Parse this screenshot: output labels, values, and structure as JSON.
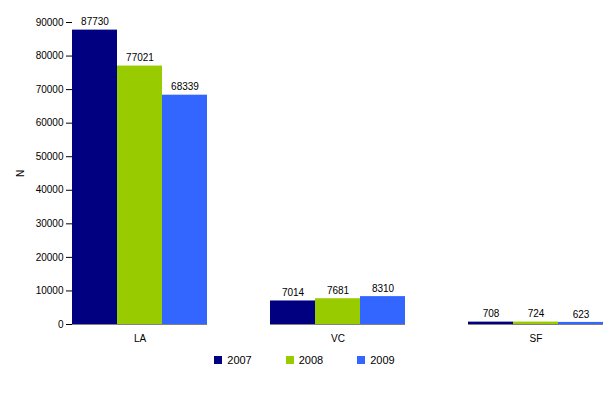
{
  "chart_data": {
    "type": "bar",
    "y_label": "N",
    "categories": [
      "LA",
      "VC",
      "SF"
    ],
    "series": [
      {
        "name": "2007",
        "color": "#000080",
        "values": [
          87730,
          7014,
          708
        ]
      },
      {
        "name": "2008",
        "color": "#99cc00",
        "values": [
          77021,
          7681,
          724
        ]
      },
      {
        "name": "2009",
        "color": "#3366ff",
        "values": [
          68339,
          8310,
          623
        ]
      }
    ],
    "ylim": [
      0,
      90000
    ],
    "yticks": [
      0,
      10000,
      20000,
      30000,
      40000,
      50000,
      60000,
      70000,
      80000,
      90000
    ],
    "grid": false,
    "data_labels": true,
    "legend": "bottom"
  }
}
